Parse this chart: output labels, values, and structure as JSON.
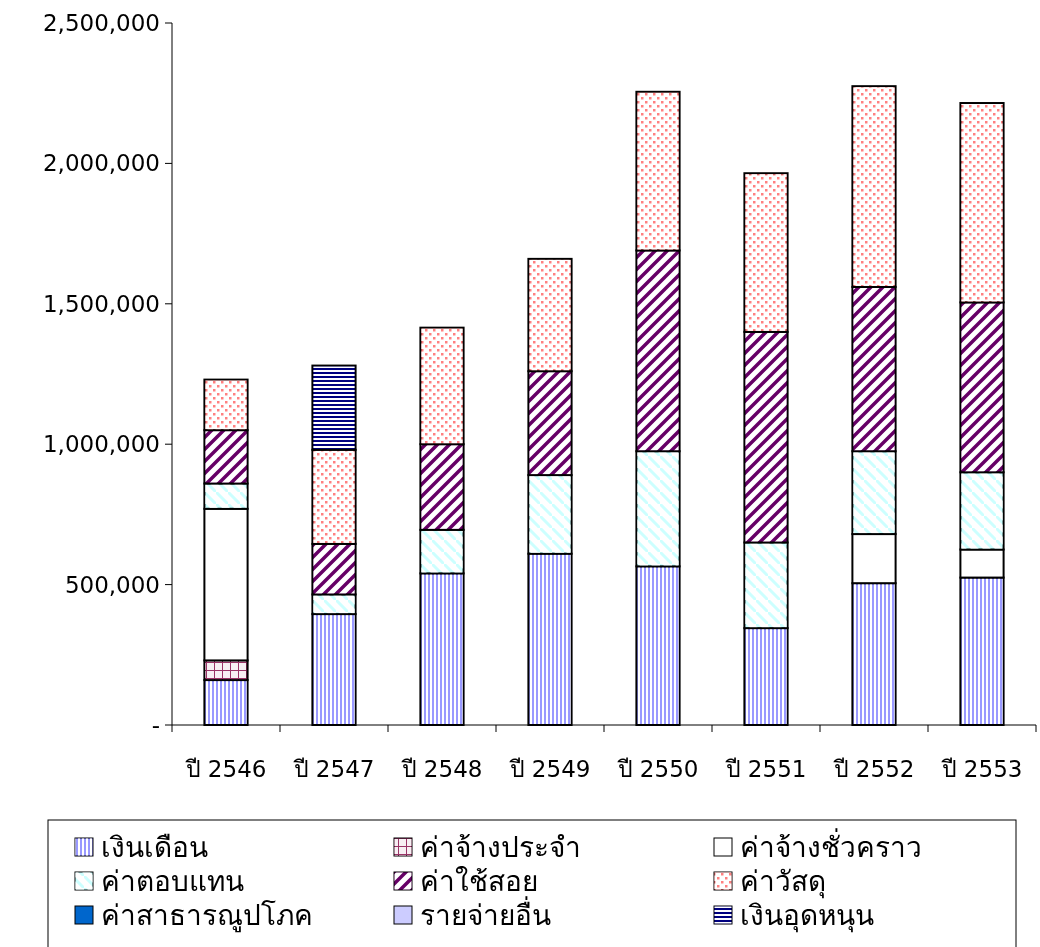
{
  "chart_data": {
    "type": "bar",
    "stacked": true,
    "categories": [
      "ปี 2546",
      "ปี 2547",
      "ปี 2548",
      "ปี 2549",
      "ปี 2550",
      "ปี 2551",
      "ปี 2552",
      "ปี 2553"
    ],
    "ylim": [
      0,
      2500000
    ],
    "yticks": [
      {
        "value": 0,
        "label": "-"
      },
      {
        "value": 500000,
        "label": "500,000"
      },
      {
        "value": 1000000,
        "label": "1,000,000"
      },
      {
        "value": 1500000,
        "label": "1,500,000"
      },
      {
        "value": 2000000,
        "label": "2,000,000"
      },
      {
        "value": 2500000,
        "label": "2,500,000"
      }
    ],
    "grid": false,
    "legend": "bottom",
    "series": [
      {
        "name": "เงินเดือน",
        "color": "#9999ff",
        "values": [
          160000,
          395000,
          540000,
          610000,
          565000,
          345000,
          505000,
          525000
        ]
      },
      {
        "name": "ค่าจ้างประจำ",
        "color": "#993366",
        "values": [
          70000,
          null,
          null,
          null,
          null,
          null,
          null,
          null
        ]
      },
      {
        "name": "ค่าจ้างชั่วคราว",
        "color": "#ffffff",
        "values": [
          540000,
          null,
          null,
          null,
          null,
          null,
          175000,
          100000
        ]
      },
      {
        "name": "ค่าตอบแทน",
        "color": "#ccffff",
        "values": [
          90000,
          70000,
          155000,
          280000,
          410000,
          305000,
          295000,
          275000
        ]
      },
      {
        "name": "ค่าใช้สอย",
        "color": "#660066",
        "values": [
          190000,
          180000,
          305000,
          370000,
          715000,
          750000,
          585000,
          605000
        ]
      },
      {
        "name": "ค่าวัสดุ",
        "color": "#ff8080",
        "values": [
          180000,
          335000,
          415000,
          400000,
          565000,
          565000,
          715000,
          710000
        ]
      },
      {
        "name": "ค่าสาธารณูปโภค",
        "color": "#0066cc",
        "values": [
          null,
          null,
          null,
          null,
          null,
          null,
          null,
          null
        ]
      },
      {
        "name": "รายจ่ายอื่น",
        "color": "#ccccff",
        "values": [
          null,
          null,
          null,
          null,
          null,
          null,
          null,
          null
        ]
      },
      {
        "name": "เงินอุดหนุน",
        "color": "#000080",
        "values": [
          null,
          300000,
          null,
          null,
          null,
          null,
          null,
          null
        ]
      }
    ]
  }
}
